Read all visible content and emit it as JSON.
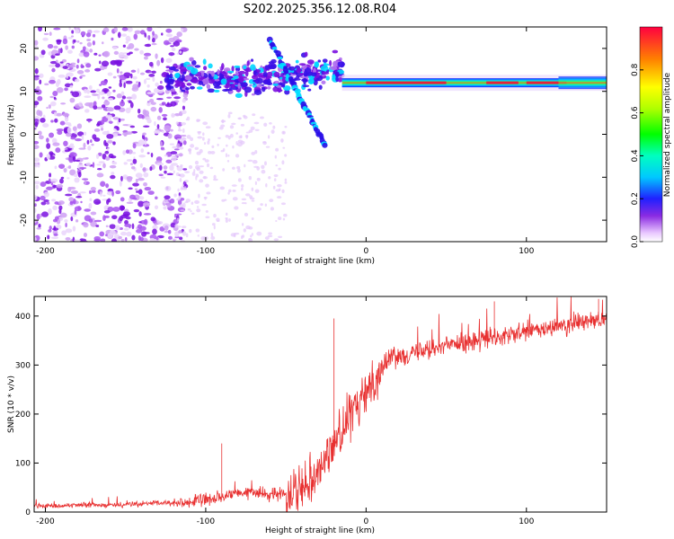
{
  "figure_title": "S202.2025.356.12.08.R04",
  "chart_data": [
    {
      "type": "heatmap",
      "title": "S202.2025.356.12.08.R04",
      "xlabel": "Height of straight line (km)",
      "ylabel": "Frequency (Hz)",
      "xlim": [
        -207,
        150
      ],
      "ylim": [
        -25,
        25
      ],
      "xticks": [
        -200,
        -100,
        0,
        100
      ],
      "yticks": [
        -20,
        -10,
        0,
        10,
        20
      ],
      "colorbar": {
        "label": "Normalized spectral amplitude",
        "range": [
          0.0,
          1.0
        ],
        "ticks": [
          0.0,
          0.2,
          0.4,
          0.6,
          0.8
        ]
      },
      "features": {
        "noise_region_km": [
          -207,
          -120
        ],
        "dispersive_band_km": [
          -125,
          -15
        ],
        "dispersive_freq_hz": [
          5,
          22
        ],
        "steady_band_km": [
          -15,
          150
        ],
        "steady_freq_hz": 12,
        "steady_band_peak_amplitude": 0.95
      }
    },
    {
      "type": "line",
      "xlabel": "Height of straight line (km)",
      "ylabel": "SNR (10 * v/v)",
      "xlim": [
        -207,
        150
      ],
      "ylim": [
        0,
        440
      ],
      "xticks": [
        -200,
        -100,
        0,
        100
      ],
      "yticks": [
        0,
        100,
        200,
        300,
        400
      ],
      "series": [
        {
          "name": "SNR",
          "color": "#e83030",
          "x": [
            -207,
            -180,
            -150,
            -130,
            -110,
            -100,
            -90,
            -80,
            -70,
            -60,
            -50,
            -40,
            -30,
            -25,
            -20,
            -15,
            -10,
            -5,
            0,
            5,
            10,
            15,
            20,
            30,
            40,
            50,
            60,
            70,
            80,
            90,
            100,
            110,
            120,
            130,
            140,
            150
          ],
          "values": [
            12,
            14,
            15,
            18,
            20,
            25,
            30,
            38,
            40,
            35,
            40,
            55,
            85,
            110,
            140,
            170,
            195,
            215,
            245,
            270,
            295,
            315,
            320,
            325,
            335,
            340,
            345,
            350,
            355,
            360,
            368,
            372,
            378,
            385,
            390,
            395
          ]
        }
      ],
      "annotations": [
        {
          "x": -90,
          "y": 140
        },
        {
          "x": -20,
          "y": 395
        },
        {
          "x": 80,
          "y": 430
        },
        {
          "x": 145,
          "y": 435
        }
      ]
    }
  ]
}
